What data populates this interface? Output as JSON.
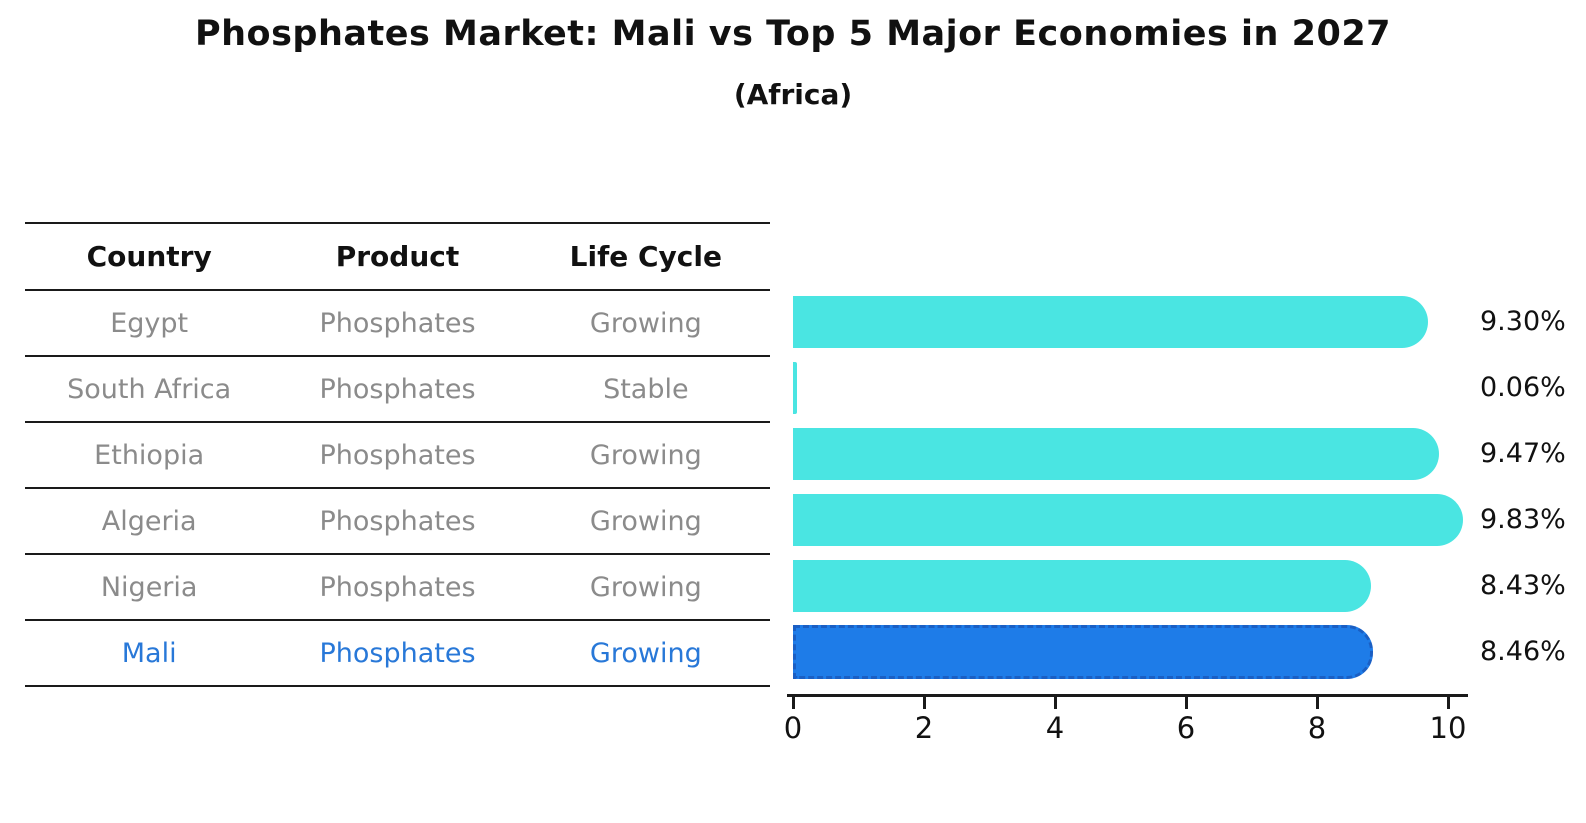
{
  "title": "Phosphates Market: Mali vs Top 5 Major Economies in 2027",
  "subtitle": "(Africa)",
  "colors": {
    "bar": "#4ae5e2",
    "highlight_bar": "#1e7ce8",
    "highlight_border": "#1a5fc4",
    "highlight_text": "#2878d8",
    "row_text": "#8b8b8b",
    "text": "#111111"
  },
  "table": {
    "headers": [
      "Country",
      "Product",
      "Life Cycle"
    ],
    "rows": [
      {
        "country": "Egypt",
        "product": "Phosphates",
        "life_cycle": "Growing",
        "highlighted": false
      },
      {
        "country": "South Africa",
        "product": "Phosphates",
        "life_cycle": "Stable",
        "highlighted": false
      },
      {
        "country": "Ethiopia",
        "product": "Phosphates",
        "life_cycle": "Growing",
        "highlighted": false
      },
      {
        "country": "Algeria",
        "product": "Phosphates",
        "life_cycle": "Growing",
        "highlighted": false
      },
      {
        "country": "Nigeria",
        "product": "Phosphates",
        "life_cycle": "Growing",
        "highlighted": false
      },
      {
        "country": "Mali",
        "product": "Phosphates",
        "life_cycle": "Growing",
        "highlighted": true
      }
    ]
  },
  "chart_data": {
    "type": "bar",
    "orientation": "horizontal",
    "title": "Phosphates Market: Mali vs Top 5 Major Economies in 2027",
    "subtitle": "(Africa)",
    "categories": [
      "Egypt",
      "South Africa",
      "Ethiopia",
      "Algeria",
      "Nigeria",
      "Mali"
    ],
    "values": [
      9.3,
      0.06,
      9.47,
      9.83,
      8.43,
      8.46
    ],
    "value_labels": [
      "9.30%",
      "0.06%",
      "9.47%",
      "9.83%",
      "8.43%",
      "8.46%"
    ],
    "highlight_index": 5,
    "xlim": [
      0,
      10
    ],
    "xticks": [
      0,
      2,
      4,
      6,
      8,
      10
    ],
    "grid": false,
    "legend": false
  }
}
